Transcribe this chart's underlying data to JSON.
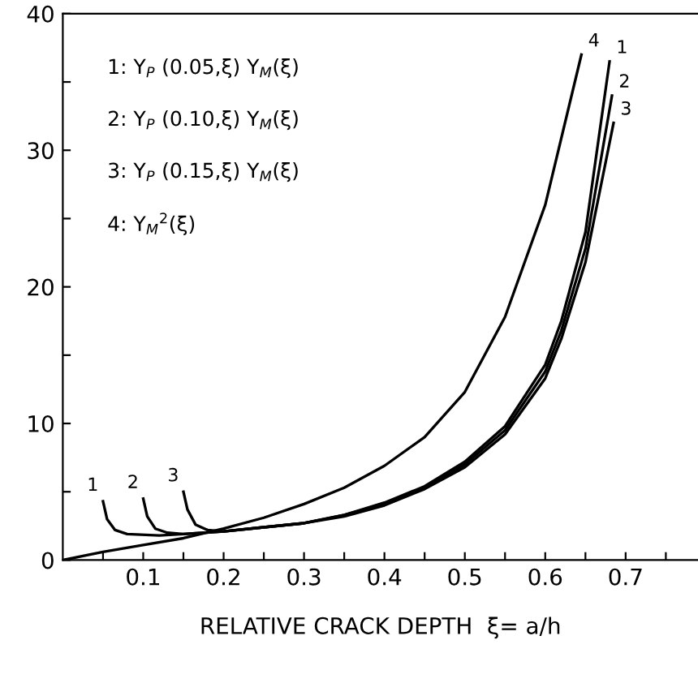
{
  "chart_data": {
    "type": "line",
    "xlabel": "RELATIVE CRACK DEPTH  ξ= a/h",
    "xlim": [
      0,
      0.79
    ],
    "ylim": [
      0,
      40
    ],
    "xticks": [
      {
        "value": 0.05,
        "label": null
      },
      0.1,
      {
        "value": 0.15,
        "label": null
      },
      0.2,
      {
        "value": 0.25,
        "label": null
      },
      0.3,
      {
        "value": 0.35,
        "label": null
      },
      0.4,
      {
        "value": 0.45,
        "label": null
      },
      0.5,
      {
        "value": 0.55,
        "label": null
      },
      0.6,
      {
        "value": 0.65,
        "label": null
      },
      0.7,
      {
        "value": 0.75,
        "label": null
      }
    ],
    "yticks": [
      0,
      {
        "value": 5,
        "label": null
      },
      10,
      {
        "value": 15,
        "label": null
      },
      20,
      {
        "value": 25,
        "label": null
      },
      30,
      {
        "value": 35,
        "label": null
      },
      40
    ],
    "grid": false,
    "legend": false,
    "marker": "none",
    "line_style": "solid",
    "annotations": [
      "1: Y$_{P}$ (0.05,ξ) Y$_{M}$(ξ)",
      "2: Y$_{P}$ (0.10,ξ) Y$_{M}$(ξ)",
      "3: Y$_{P}$ (0.15,ξ) Y$_{M}$(ξ)",
      "4: Y$_{M}$$^{2}$(ξ)"
    ],
    "series": [
      {
        "name": "1",
        "color": "#000000",
        "x": [
          0.05,
          0.055,
          0.065,
          0.08,
          0.12,
          0.15,
          0.2,
          0.25,
          0.3,
          0.35,
          0.4,
          0.45,
          0.5,
          0.55,
          0.6,
          0.62,
          0.65,
          0.68
        ],
        "values": [
          4.3,
          3.0,
          2.2,
          1.9,
          1.8,
          1.9,
          2.1,
          2.4,
          2.7,
          3.3,
          4.2,
          5.4,
          7.2,
          9.8,
          14.3,
          17.5,
          24,
          36.5
        ]
      },
      {
        "name": "2",
        "color": "#000000",
        "x": [
          0.1,
          0.105,
          0.115,
          0.13,
          0.15,
          0.2,
          0.25,
          0.3,
          0.35,
          0.4,
          0.45,
          0.5,
          0.55,
          0.6,
          0.62,
          0.65,
          0.683
        ],
        "values": [
          4.5,
          3.2,
          2.3,
          2.0,
          1.9,
          2.1,
          2.4,
          2.7,
          3.3,
          4.1,
          5.3,
          7.0,
          9.5,
          13.8,
          16.8,
          22.8,
          34
        ]
      },
      {
        "name": "3",
        "color": "#000000",
        "x": [
          0.15,
          0.155,
          0.165,
          0.18,
          0.2,
          0.25,
          0.3,
          0.35,
          0.4,
          0.45,
          0.5,
          0.55,
          0.6,
          0.62,
          0.65,
          0.685
        ],
        "values": [
          5.0,
          3.7,
          2.6,
          2.2,
          2.1,
          2.4,
          2.7,
          3.2,
          4.0,
          5.2,
          6.8,
          9.2,
          13.3,
          16.2,
          21.8,
          32
        ]
      },
      {
        "name": "4",
        "color": "#000000",
        "x": [
          0,
          0.05,
          0.1,
          0.15,
          0.2,
          0.25,
          0.3,
          0.35,
          0.4,
          0.45,
          0.5,
          0.55,
          0.6,
          0.645
        ],
        "values": [
          0,
          0.6,
          1.1,
          1.6,
          2.3,
          3.1,
          4.1,
          5.3,
          6.9,
          9.0,
          12.3,
          17.8,
          26,
          37
        ]
      }
    ]
  }
}
